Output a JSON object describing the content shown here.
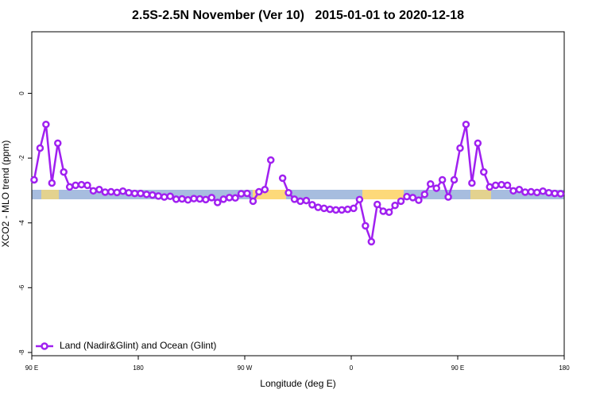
{
  "chart_data": {
    "type": "line",
    "title": "2.5S-2.5N November (Ver 10)   2015-01-01 to 2020-12-18",
    "x_label": "Longitude (deg E)",
    "y_label": "XCO2 - MLO trend (ppm)",
    "x": [
      92,
      97,
      102,
      107,
      112,
      117,
      122,
      127,
      132,
      137,
      142,
      147,
      152,
      157,
      162,
      167,
      172,
      177,
      182,
      187,
      192,
      197,
      202,
      207,
      212,
      217,
      222,
      227,
      232,
      237,
      242,
      247,
      252,
      257,
      262,
      267,
      272,
      277,
      282,
      287,
      292,
      297,
      302,
      307,
      312,
      317,
      322,
      327,
      332,
      337,
      342,
      347,
      352,
      357,
      362,
      367,
      372,
      377,
      382,
      387,
      392,
      397,
      402,
      407,
      412,
      417,
      422,
      427,
      432,
      437,
      442,
      447,
      452,
      457,
      462,
      467,
      472,
      477,
      482,
      487,
      492,
      497,
      502,
      507,
      512,
      517,
      522,
      527,
      532,
      537
    ],
    "series": [
      {
        "name": "Land (Nadir&Glint) and Ocean (Glint)",
        "color": "#a020f0",
        "values": [
          -2.67,
          -1.69,
          -0.96,
          -2.77,
          -1.54,
          -2.43,
          -2.89,
          -2.84,
          -2.82,
          -2.84,
          -3.01,
          -2.97,
          -3.05,
          -3.04,
          -3.06,
          -3.02,
          -3.07,
          -3.09,
          -3.09,
          -3.12,
          -3.14,
          -3.17,
          -3.2,
          -3.18,
          -3.27,
          -3.26,
          -3.29,
          -3.25,
          -3.26,
          -3.28,
          -3.22,
          -3.37,
          -3.27,
          -3.22,
          -3.23,
          -3.1,
          -3.09,
          -3.33,
          -3.04,
          -2.97,
          -2.06,
          null,
          -2.62,
          -3.07,
          -3.27,
          -3.33,
          -3.31,
          -3.44,
          -3.52,
          -3.55,
          -3.58,
          -3.6,
          -3.6,
          -3.58,
          -3.55,
          -3.28,
          -4.09,
          -4.58,
          -3.43,
          -3.64,
          -3.67,
          -3.46,
          -3.33,
          -3.19,
          -3.22,
          -3.3,
          -3.12,
          -2.8,
          -2.93,
          -2.67,
          -3.2,
          -2.67,
          -1.69,
          -0.96,
          -2.77,
          -1.54,
          -2.43,
          -2.89,
          -2.84,
          -2.82,
          -2.84,
          -3.01,
          -2.97,
          -3.05,
          -3.04,
          -3.06,
          -3.02,
          -3.07,
          -3.09,
          -3.1
        ]
      }
    ],
    "xlim": [
      90,
      540
    ],
    "xticks": [
      {
        "value": 90,
        "label": "90 E"
      },
      {
        "value": 180,
        "label": "180"
      },
      {
        "value": 270,
        "label": "90 W"
      },
      {
        "value": 360,
        "label": "0"
      },
      {
        "value": 450,
        "label": "90 E"
      },
      {
        "value": 540,
        "label": "180"
      }
    ],
    "ylim": [
      -8.1,
      1.9
    ],
    "yticks": [
      -8,
      -6,
      -4,
      -2,
      0
    ],
    "legend": "bottom-left"
  }
}
